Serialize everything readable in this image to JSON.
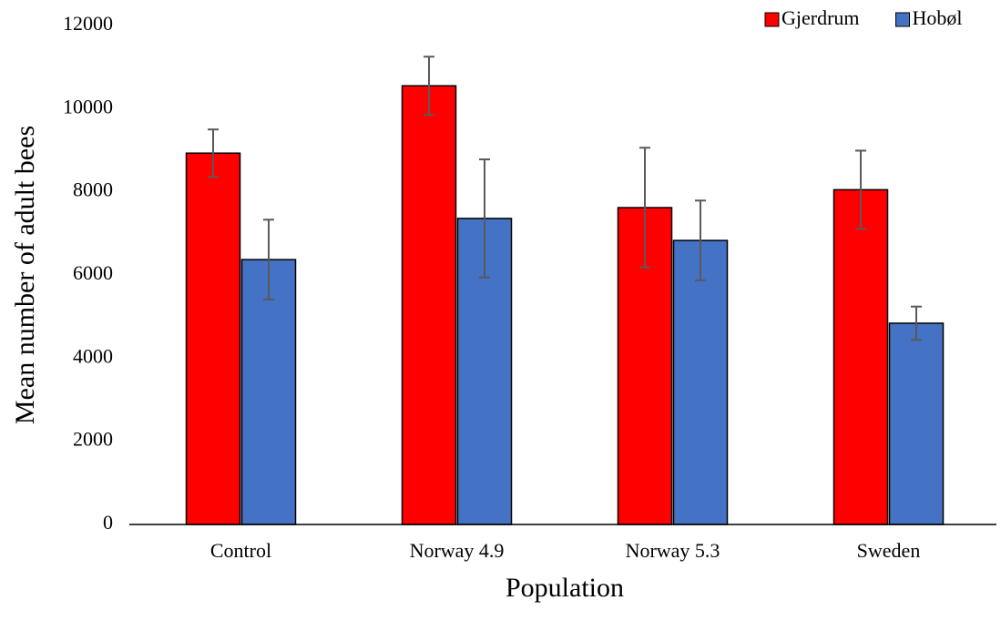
{
  "chart_data": {
    "type": "bar",
    "x_label": "Population",
    "y_label": "Mean number of adult bees",
    "categories": [
      "Control",
      "Norway 4.9",
      "Norway 5.3",
      "Sweden"
    ],
    "series": [
      {
        "name": "Gjerdrum",
        "color": "#ff0000",
        "values": [
          8930,
          10550,
          7620,
          8050
        ],
        "errors": [
          570,
          700,
          1440,
          940
        ]
      },
      {
        "name": "Hobøl",
        "color": "#4472c4",
        "values": [
          6370,
          7360,
          6830,
          4840
        ],
        "errors": [
          960,
          1420,
          960,
          400
        ]
      }
    ],
    "ylim": [
      0,
      12000
    ],
    "yticks": [
      0,
      2000,
      4000,
      6000,
      8000,
      10000,
      12000
    ],
    "grid": false,
    "legend": "top-right"
  }
}
